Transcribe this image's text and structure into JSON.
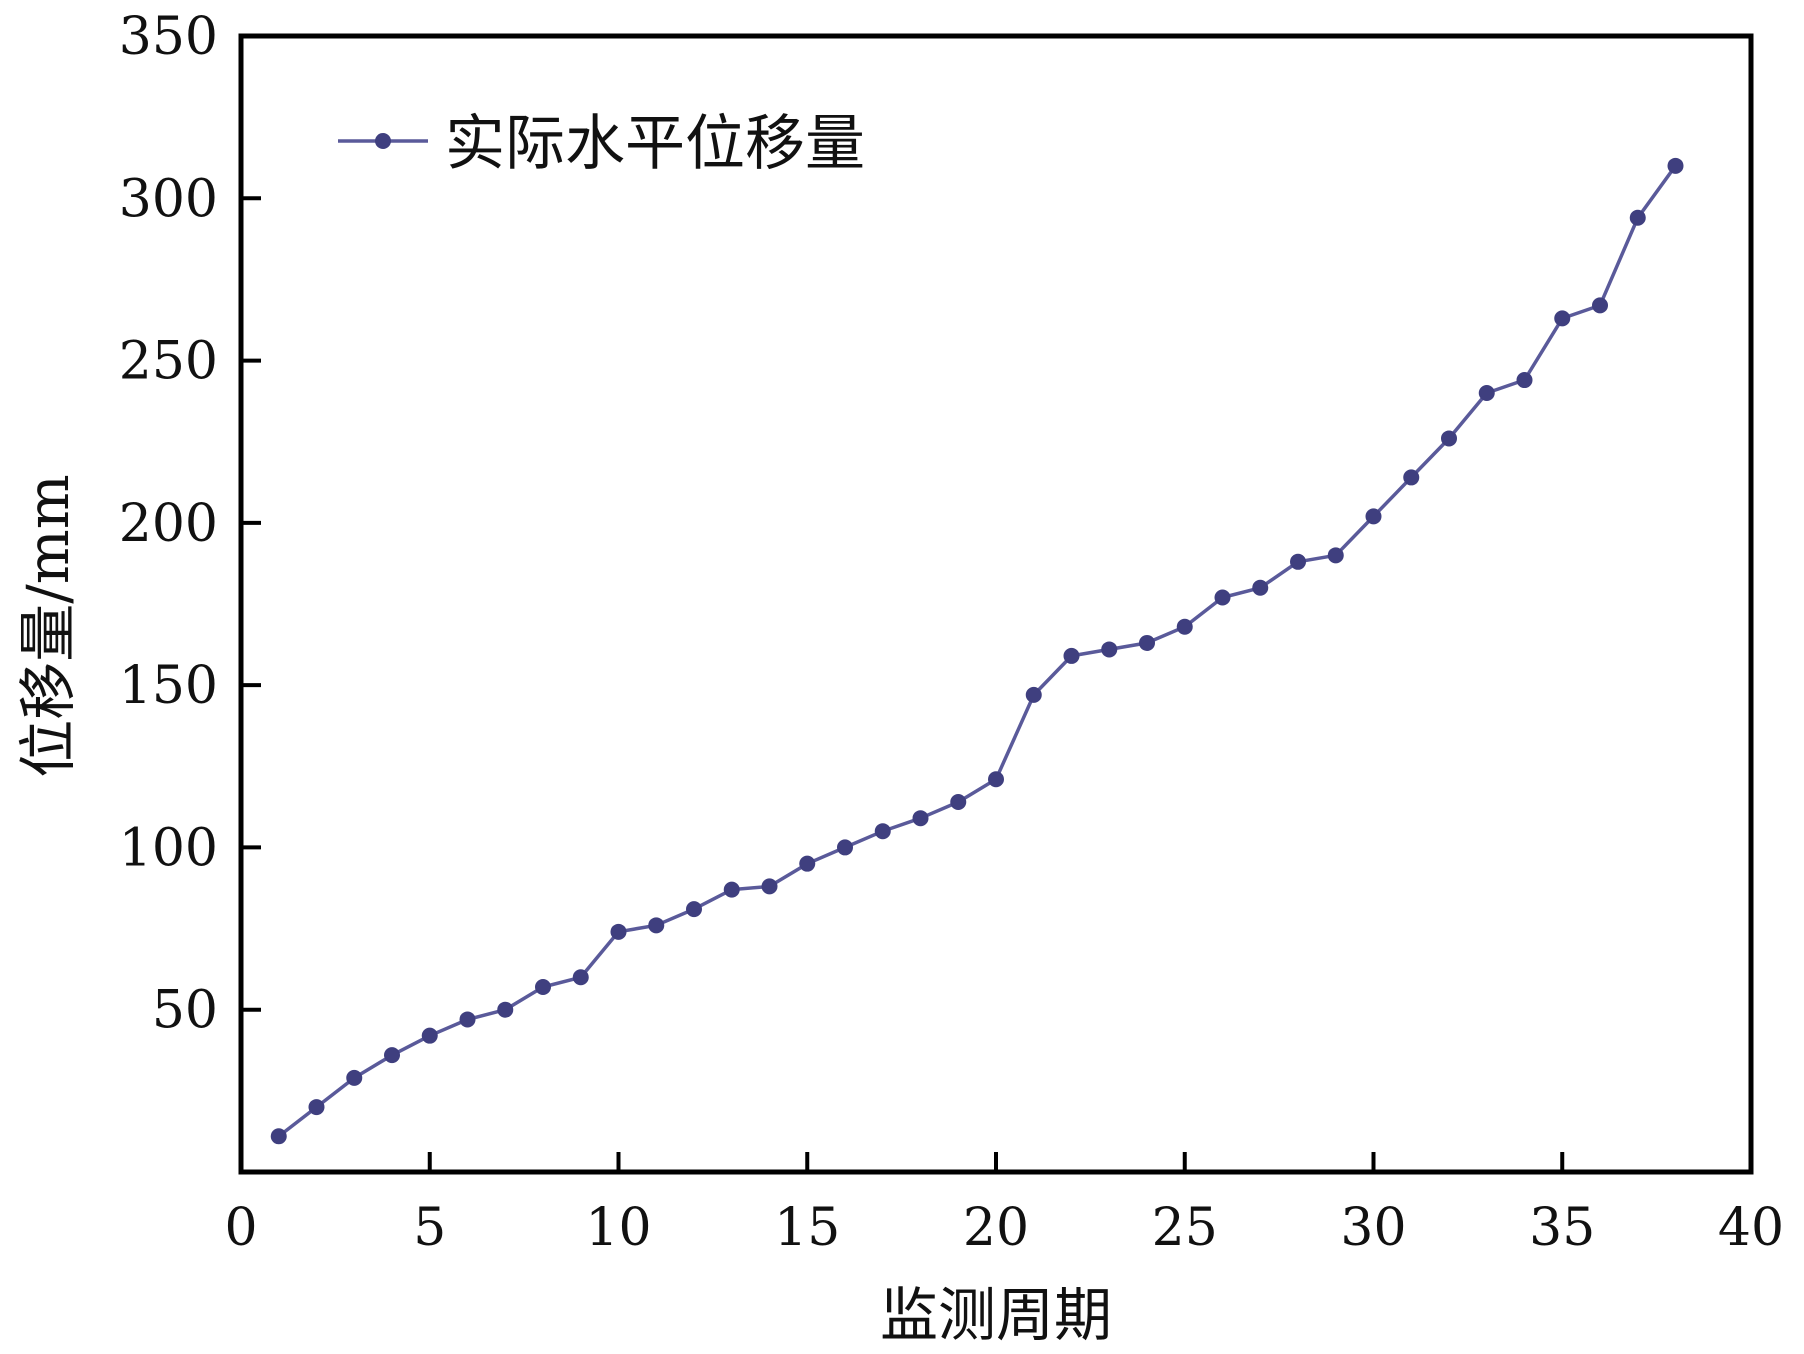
{
  "chart_data": {
    "type": "line",
    "title": "",
    "xlabel": "监测周期",
    "ylabel": "位移量/mm",
    "xlim": [
      0,
      40
    ],
    "ylim": [
      0,
      350
    ],
    "xticks": [
      0,
      5,
      10,
      15,
      20,
      25,
      30,
      35,
      40
    ],
    "yticks": [
      50,
      100,
      150,
      200,
      250,
      300,
      350
    ],
    "grid": false,
    "legend_position": "top-left",
    "series": [
      {
        "name": "实际水平位移量",
        "color": "#3f3f7f",
        "marker": "circle",
        "x": [
          1,
          2,
          3,
          4,
          5,
          6,
          7,
          8,
          9,
          10,
          11,
          12,
          13,
          14,
          15,
          16,
          17,
          18,
          19,
          20,
          21,
          22,
          23,
          24,
          25,
          26,
          27,
          28,
          29,
          30,
          31,
          32,
          33,
          34,
          35,
          36,
          37,
          38
        ],
        "y": [
          11,
          20,
          29,
          36,
          42,
          47,
          50,
          57,
          60,
          74,
          76,
          81,
          87,
          88,
          95,
          100,
          105,
          109,
          114,
          121,
          147,
          159,
          161,
          163,
          168,
          177,
          180,
          188,
          190,
          202,
          214,
          226,
          240,
          244,
          263,
          267,
          294,
          310
        ]
      }
    ]
  }
}
